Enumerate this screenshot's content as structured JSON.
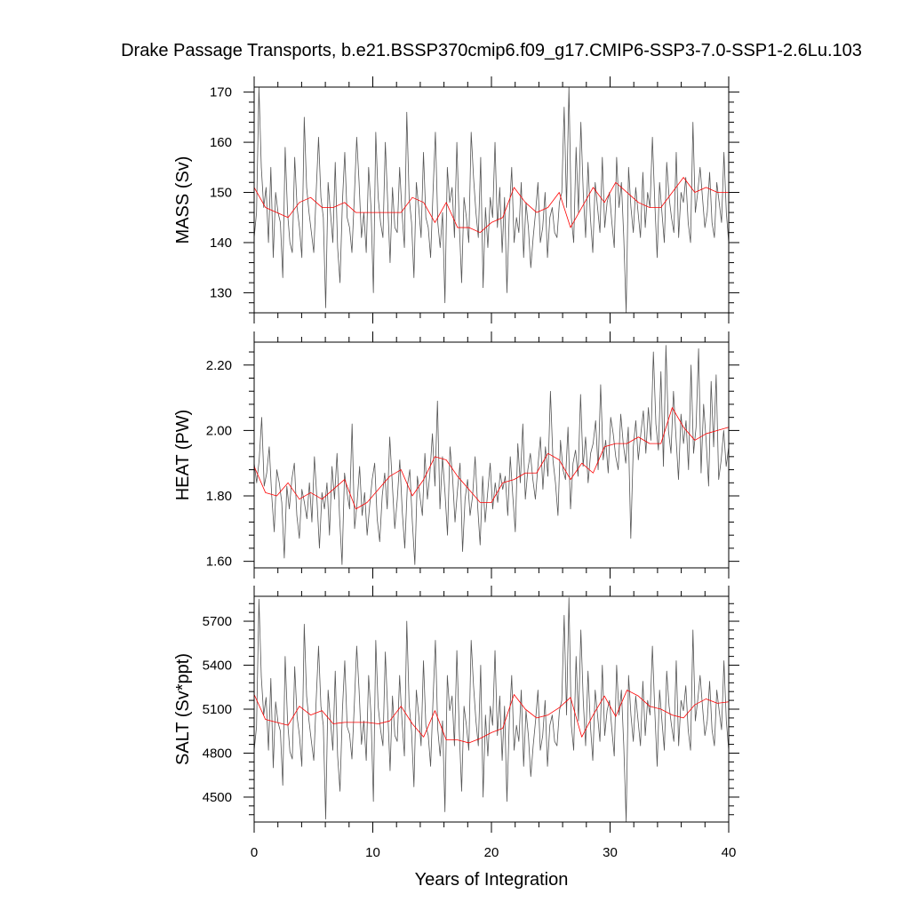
{
  "chart_data": {
    "type": "line",
    "title": "Drake Passage Transports, b.e21.BSSP370cmip6.f09_g17.CMIP6-SSP3-7.0-SSP1-2.6Lu.103",
    "xlabel": "Years of Integration",
    "xlim": [
      0,
      40
    ],
    "xticks": [
      "0",
      "10",
      "20",
      "30",
      "40"
    ],
    "grid": false,
    "colors": {
      "monthly": "#555555",
      "annual": "#ff0000",
      "frame": "#000000"
    },
    "panels": [
      {
        "id": "mass",
        "ylabel": "MASS (Sv)",
        "ylim": [
          126,
          171
        ],
        "yticks": [
          130,
          140,
          150,
          160,
          170
        ],
        "ytick_labels": [
          "130",
          "140",
          "150",
          "160",
          "170"
        ],
        "series": [
          {
            "values": [
              141,
              146,
              171,
              155,
              147,
              151,
              140,
              155,
              137,
              150,
              146,
              144,
              133,
              159,
              146,
              140,
              138,
              157,
              147,
              143,
              137,
              165,
              151,
              146,
              142,
              138,
              150,
              161,
              149,
              145,
              127,
              152,
              146,
              140,
              156,
              139,
              132,
              148,
              158,
              145,
              143,
              138,
              149,
              161,
              152,
              141,
              146,
              138,
              155,
              147,
              130,
              162,
              149,
              144,
              141,
              160,
              148,
              136,
              151,
              143,
              142,
              155,
              146,
              139,
              166,
              149,
              144,
              133,
              152,
              147,
              141,
              158,
              145,
              143,
              137,
              150,
              162,
              144,
              139,
              146,
              128,
              155,
              148,
              151,
              141,
              160,
              144,
              132,
              149,
              145,
              140,
              162,
              153,
              146,
              141,
              157,
              131,
              147,
              139,
              149,
              145,
              160,
              143,
              151,
              138,
              149,
              130,
              146,
              155,
              140,
              145,
              142,
              152,
              137,
              148,
              143,
              135,
              141,
              146,
              152,
              140,
              143,
              150,
              137,
              145,
              147,
              142,
              141,
              148,
              150,
              167,
              147,
              171,
              145,
              140,
              159,
              146,
              164,
              150,
              141,
              156,
              145,
              138,
              152,
              147,
              142,
              157,
              143,
              148,
              150,
              144,
              139,
              157,
              147,
              152,
              141,
              126,
              155,
              147,
              142,
              151,
              146,
              141,
              154,
              143,
              150,
              147,
              161,
              148,
              137,
              152,
              146,
              140,
              156,
              149,
              145,
              142,
              158,
              141,
              150,
              148,
              153,
              144,
              140,
              164,
              146,
              150,
              155,
              149,
              143,
              146,
              154,
              144,
              141,
              152,
              148,
              144,
              158,
              146,
              140
            ]
          },
          {
            "values": [
              151,
              147,
              146,
              145,
              148,
              149,
              147,
              147,
              148,
              146,
              146,
              146,
              146,
              146,
              149,
              148,
              144,
              148,
              143,
              143,
              142,
              144,
              145,
              151,
              148,
              146,
              147,
              150,
              143,
              147,
              151,
              148,
              152,
              150,
              148,
              147,
              147,
              150,
              153,
              150,
              151,
              150,
              150
            ]
          }
        ]
      },
      {
        "id": "heat",
        "ylabel": "HEAT (PW)",
        "ylim": [
          1.58,
          2.27
        ],
        "yticks": [
          1.6,
          1.8,
          2.0,
          2.2
        ],
        "ytick_labels": [
          "1.60",
          "1.80",
          "2.00",
          "2.20"
        ],
        "series": [
          {
            "values": [
              1.9,
              1.84,
              1.91,
              2.04,
              1.83,
              1.87,
              1.95,
              1.8,
              1.69,
              1.88,
              1.84,
              1.78,
              1.61,
              1.83,
              1.76,
              1.85,
              1.9,
              1.74,
              1.67,
              1.82,
              1.78,
              1.73,
              1.84,
              1.72,
              1.92,
              1.79,
              1.64,
              1.81,
              1.76,
              1.84,
              1.68,
              1.89,
              1.79,
              1.93,
              1.74,
              1.59,
              1.87,
              1.81,
              1.76,
              2.02,
              1.7,
              1.78,
              1.89,
              1.74,
              1.81,
              1.68,
              1.77,
              1.85,
              1.9,
              1.73,
              1.66,
              1.8,
              1.87,
              1.76,
              1.98,
              1.84,
              1.7,
              1.79,
              1.91,
              1.75,
              1.64,
              1.83,
              1.88,
              1.72,
              1.59,
              1.86,
              1.8,
              1.74,
              1.93,
              1.79,
              1.87,
              1.99,
              1.83,
              2.09,
              1.76,
              1.92,
              1.81,
              1.68,
              1.95,
              1.86,
              1.72,
              1.82,
              1.9,
              1.63,
              1.79,
              1.85,
              1.74,
              1.8,
              1.92,
              1.77,
              1.65,
              1.86,
              1.72,
              1.81,
              1.9,
              1.76,
              1.84,
              1.78,
              1.87,
              1.82,
              1.86,
              1.74,
              1.92,
              1.8,
              1.69,
              1.96,
              1.84,
              2.02,
              1.79,
              1.88,
              1.93,
              1.85,
              1.79,
              1.89,
              1.98,
              1.82,
              1.95,
              1.86,
              2.12,
              1.91,
              1.84,
              1.74,
              1.97,
              1.88,
              1.85,
              2.01,
              1.76,
              1.9,
              1.94,
              1.86,
              2.11,
              1.89,
              1.98,
              1.84,
              1.93,
              1.96,
              2.03,
              1.88,
              2.14,
              1.91,
              1.97,
              1.87,
              2.04,
              1.99,
              1.92,
              1.88,
              2.05,
              1.96,
              1.9,
              2.01,
              1.67,
              1.95,
              2.03,
              1.91,
              1.99,
              2.06,
              1.93,
              2.07,
              1.97,
              2.24,
              2.02,
              1.94,
              2.18,
              1.89,
              2.26,
              2.0,
              1.93,
              2.12,
              1.98,
              1.85,
              2.05,
              1.96,
              2.03,
              1.88,
              2.2,
              1.93,
              2.01,
              2.25,
              1.87,
              2.08,
              1.97,
              1.83,
              2.15,
              1.95,
              2.17,
              1.85,
              1.91,
              2.0,
              1.89,
              1.95
            ]
          },
          {
            "values": [
              1.89,
              1.81,
              1.8,
              1.84,
              1.79,
              1.81,
              1.79,
              1.82,
              1.85,
              1.76,
              1.78,
              1.82,
              1.86,
              1.88,
              1.8,
              1.85,
              1.92,
              1.91,
              1.86,
              1.82,
              1.78,
              1.78,
              1.84,
              1.85,
              1.87,
              1.87,
              1.93,
              1.91,
              1.85,
              1.9,
              1.87,
              1.95,
              1.96,
              1.96,
              1.98,
              1.96,
              1.96,
              2.07,
              2.01,
              1.97,
              1.99,
              2.0,
              2.01
            ]
          }
        ]
      },
      {
        "id": "salt",
        "ylabel": "SALT (Sv*ppt)",
        "ylim": [
          4330,
          5870
        ],
        "yticks": [
          4500,
          4800,
          5100,
          5400,
          5700
        ],
        "ytick_labels": [
          "4500",
          "4800",
          "5100",
          "5400",
          "5700"
        ],
        "series": [
          {
            "values": [
              4820,
              4980,
              5850,
              5320,
              5060,
              5180,
              4820,
              5310,
              4700,
              5150,
              5010,
              4950,
              4580,
              5460,
              5020,
              4810,
              4760,
              5390,
              5050,
              4920,
              4710,
              5680,
              5190,
              5020,
              4880,
              4750,
              5160,
              5530,
              5120,
              4990,
              4350,
              5230,
              5020,
              4820,
              5360,
              4780,
              4540,
              5090,
              5430,
              4980,
              4930,
              4760,
              5130,
              5530,
              5230,
              4860,
              5020,
              4750,
              5330,
              5060,
              4470,
              5570,
              5120,
              4960,
              4850,
              5490,
              5090,
              4680,
              5190,
              4920,
              4880,
              5330,
              5020,
              4780,
              5700,
              5130,
              4950,
              4570,
              5230,
              5060,
              4850,
              5430,
              4990,
              4920,
              4710,
              5160,
              5570,
              4960,
              4780,
              5020,
              4400,
              5330,
              5090,
              5190,
              4850,
              5500,
              4960,
              4540,
              5120,
              4990,
              4820,
              5570,
              5260,
              5020,
              4850,
              5400,
              4500,
              5060,
              4780,
              5120,
              4990,
              5500,
              4920,
              5190,
              4750,
              5120,
              4470,
              5020,
              5330,
              4820,
              4990,
              4880,
              5230,
              4710,
              5090,
              4920,
              4640,
              4850,
              5020,
              5230,
              4820,
              4920,
              5160,
              4710,
              4990,
              5060,
              4880,
              4850,
              5090,
              5160,
              5740,
              5060,
              5860,
              4990,
              4820,
              5460,
              5020,
              5640,
              5160,
              4850,
              5360,
              4990,
              4750,
              5230,
              5060,
              4880,
              5400,
              4920,
              5090,
              5160,
              4960,
              4780,
              5400,
              5060,
              5230,
              4850,
              4330,
              5330,
              5060,
              4880,
              5190,
              5020,
              4850,
              5290,
              4920,
              5160,
              5060,
              5530,
              5090,
              4710,
              5230,
              5020,
              4820,
              5360,
              5120,
              4990,
              4880,
              5430,
              4850,
              5160,
              5090,
              5260,
              4960,
              4820,
              5640,
              5020,
              5160,
              5330,
              5120,
              4920,
              5020,
              5290,
              4960,
              4850,
              5230,
              5090,
              4960,
              5430,
              5020,
              4820
            ]
          },
          {
            "values": [
              5200,
              5030,
              5010,
              4990,
              5120,
              5060,
              5090,
              5000,
              5010,
              5010,
              5010,
              5000,
              5020,
              5120,
              5000,
              4910,
              5090,
              4890,
              4890,
              4870,
              4900,
              4940,
              4970,
              5200,
              5100,
              5040,
              5060,
              5110,
              5180,
              4910,
              5060,
              5190,
              5050,
              5230,
              5190,
              5120,
              5100,
              5060,
              5040,
              5130,
              5170,
              5140,
              5150
            ]
          }
        ]
      }
    ]
  }
}
